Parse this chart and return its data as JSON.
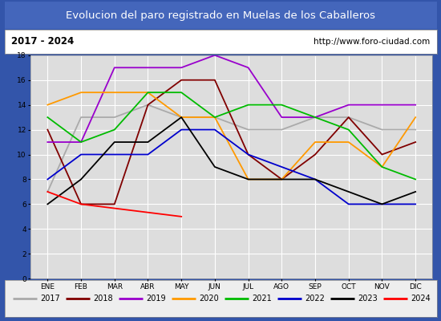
{
  "title": "Evolucion del paro registrado en Muelas de los Caballeros",
  "subtitle_left": "2017 - 2024",
  "subtitle_right": "http://www.foro-ciudad.com",
  "months": [
    "ENE",
    "FEB",
    "MAR",
    "ABR",
    "MAY",
    "JUN",
    "JUL",
    "AGO",
    "SEP",
    "OCT",
    "NOV",
    "DIC"
  ],
  "ylim": [
    0,
    18
  ],
  "yticks": [
    0,
    2,
    4,
    6,
    8,
    10,
    12,
    14,
    16,
    18
  ],
  "series": {
    "2017": {
      "color": "#aaaaaa",
      "data": [
        7,
        13,
        13,
        14,
        13,
        13,
        12,
        12,
        13,
        13,
        12,
        12
      ]
    },
    "2018": {
      "color": "#800000",
      "data": [
        12,
        6,
        6,
        14,
        16,
        16,
        10,
        8,
        10,
        13,
        10,
        11
      ]
    },
    "2019": {
      "color": "#9900cc",
      "data": [
        11,
        11,
        17,
        17,
        17,
        18,
        17,
        13,
        13,
        14,
        14,
        14
      ]
    },
    "2020": {
      "color": "#ff9900",
      "data": [
        14,
        15,
        15,
        15,
        13,
        13,
        8,
        8,
        11,
        11,
        9,
        13
      ]
    },
    "2021": {
      "color": "#00bb00",
      "data": [
        13,
        11,
        12,
        15,
        15,
        13,
        14,
        14,
        13,
        12,
        9,
        8
      ]
    },
    "2022": {
      "color": "#0000cc",
      "data": [
        8,
        10,
        10,
        10,
        12,
        12,
        10,
        9,
        8,
        6,
        6,
        6
      ]
    },
    "2023": {
      "color": "#000000",
      "data": [
        6,
        8,
        11,
        11,
        13,
        9,
        8,
        8,
        8,
        7,
        6,
        7
      ]
    },
    "2024": {
      "color": "#ff0000",
      "data": [
        7,
        6,
        null,
        null,
        5,
        null,
        null,
        null,
        null,
        null,
        null,
        null
      ]
    }
  },
  "title_bg_color": "#4466bb",
  "title_text_color": "#ffffff",
  "subtitle_bg_color": "#ffffff",
  "subtitle_text_color": "#000000",
  "plot_bg_color": "#dddddd",
  "grid_color": "#ffffff",
  "legend_bg_color": "#eeeeee",
  "border_color": "#3355aa"
}
